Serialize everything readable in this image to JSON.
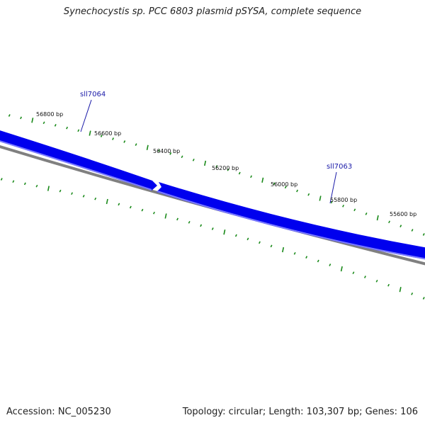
{
  "title": "Synechocystis sp. PCC 6803 plasmid pSYSA, complete sequence",
  "footer": {
    "accession": "Accession: NC_005230",
    "summary": "Topology: circular; Length: 103,307 bp; Genes: 106"
  },
  "bp_labels": [
    "56800 bp",
    "56600 bp",
    "56400 bp",
    "56200 bp",
    "56000 bp",
    "55800 bp",
    "55600 bp"
  ],
  "genes": [
    {
      "name": "sll7064"
    },
    {
      "name": "sll7063"
    }
  ],
  "colors": {
    "gene_fill": "#0000ee",
    "gene_highlight": "#6e6eff",
    "backbone": "#808080",
    "tick": "#1a8a1a",
    "gene_label": "#1a1aa8"
  }
}
